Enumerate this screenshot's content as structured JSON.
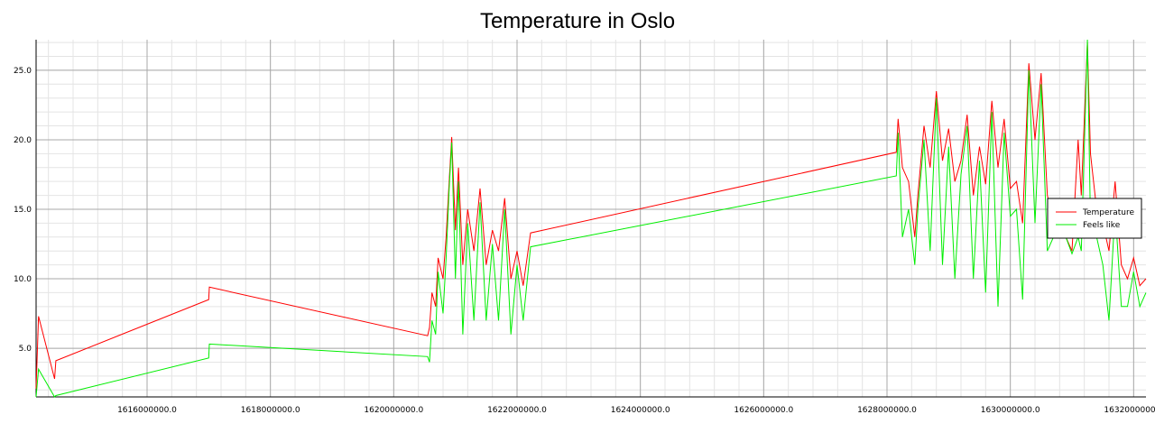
{
  "chart_data": {
    "type": "line",
    "title": "Temperature in Oslo",
    "xlabel": "",
    "ylabel": "",
    "xlim": [
      1614200000,
      1632200000
    ],
    "ylim": [
      1.5,
      27.2
    ],
    "x_ticks": [
      1616000000,
      1618000000,
      1620000000,
      1622000000,
      1624000000,
      1626000000,
      1628000000,
      1630000000,
      1632000000
    ],
    "x_tick_labels": [
      "1616000000.0",
      "1618000000.0",
      "1620000000.0",
      "1622000000.0",
      "1624000000.0",
      "1626000000.0",
      "1628000000.0",
      "1630000000.0",
      "1632000000.0"
    ],
    "y_ticks": [
      5,
      10,
      15,
      20,
      25
    ],
    "y_tick_labels": [
      "5.0",
      "10.0",
      "15.0",
      "20.0",
      "25.0"
    ],
    "grid": true,
    "legend_position": "right",
    "series": [
      {
        "name": "Temperature",
        "color": "#ff0000",
        "points": [
          [
            1614200000,
            2.1
          ],
          [
            1614240000,
            7.3
          ],
          [
            1614500000,
            2.8
          ],
          [
            1614520000,
            4.1
          ],
          [
            1617000000,
            8.5
          ],
          [
            1617010000,
            9.4
          ],
          [
            1620550000,
            5.9
          ],
          [
            1620580000,
            6.5
          ],
          [
            1620620000,
            9.0
          ],
          [
            1620680000,
            8.0
          ],
          [
            1620720000,
            11.5
          ],
          [
            1620800000,
            10.0
          ],
          [
            1620850000,
            13.0
          ],
          [
            1620900000,
            17.0
          ],
          [
            1620940000,
            20.2
          ],
          [
            1621000000,
            13.5
          ],
          [
            1621050000,
            18.0
          ],
          [
            1621120000,
            11.0
          ],
          [
            1621200000,
            15.0
          ],
          [
            1621300000,
            12.0
          ],
          [
            1621400000,
            16.5
          ],
          [
            1621500000,
            11.0
          ],
          [
            1621600000,
            13.5
          ],
          [
            1621700000,
            12.0
          ],
          [
            1621800000,
            15.8
          ],
          [
            1621900000,
            10.0
          ],
          [
            1622000000,
            12.0
          ],
          [
            1622100000,
            9.5
          ],
          [
            1622220000,
            13.3
          ],
          [
            1628150000,
            19.1
          ],
          [
            1628180000,
            21.5
          ],
          [
            1628250000,
            18.0
          ],
          [
            1628350000,
            17.0
          ],
          [
            1628450000,
            13.0
          ],
          [
            1628500000,
            16.0
          ],
          [
            1628600000,
            21.0
          ],
          [
            1628700000,
            18.0
          ],
          [
            1628800000,
            23.5
          ],
          [
            1628900000,
            18.5
          ],
          [
            1629000000,
            20.8
          ],
          [
            1629100000,
            17.0
          ],
          [
            1629200000,
            18.5
          ],
          [
            1629300000,
            21.8
          ],
          [
            1629400000,
            16.0
          ],
          [
            1629500000,
            19.5
          ],
          [
            1629600000,
            16.8
          ],
          [
            1629700000,
            22.8
          ],
          [
            1629800000,
            18.0
          ],
          [
            1629900000,
            21.5
          ],
          [
            1630000000,
            16.5
          ],
          [
            1630100000,
            17.0
          ],
          [
            1630200000,
            14.0
          ],
          [
            1630300000,
            25.5
          ],
          [
            1630400000,
            20.0
          ],
          [
            1630500000,
            24.8
          ],
          [
            1630600000,
            16.0
          ],
          [
            1630700000,
            14.0
          ],
          [
            1630900000,
            13.0
          ],
          [
            1631000000,
            12.0
          ],
          [
            1631100000,
            20.0
          ],
          [
            1631150000,
            16.0
          ],
          [
            1631250000,
            27.0
          ],
          [
            1631300000,
            19.0
          ],
          [
            1631400000,
            15.0
          ],
          [
            1631500000,
            14.0
          ],
          [
            1631600000,
            12.0
          ],
          [
            1631700000,
            17.0
          ],
          [
            1631800000,
            11.0
          ],
          [
            1631900000,
            10.0
          ],
          [
            1632000000,
            11.5
          ],
          [
            1632100000,
            9.5
          ],
          [
            1632200000,
            10.0
          ]
        ]
      },
      {
        "name": "Feels like",
        "color": "#00ee00",
        "points": [
          [
            1614200000,
            1.5
          ],
          [
            1614240000,
            3.5
          ],
          [
            1614500000,
            1.5
          ],
          [
            1614520000,
            1.6
          ],
          [
            1617000000,
            4.3
          ],
          [
            1617010000,
            5.3
          ],
          [
            1620550000,
            4.4
          ],
          [
            1620580000,
            4.0
          ],
          [
            1620620000,
            7.0
          ],
          [
            1620680000,
            6.0
          ],
          [
            1620720000,
            10.5
          ],
          [
            1620800000,
            7.5
          ],
          [
            1620850000,
            11.5
          ],
          [
            1620900000,
            16.5
          ],
          [
            1620940000,
            19.8
          ],
          [
            1621000000,
            10.0
          ],
          [
            1621050000,
            17.0
          ],
          [
            1621120000,
            6.0
          ],
          [
            1621200000,
            14.0
          ],
          [
            1621300000,
            7.0
          ],
          [
            1621400000,
            15.5
          ],
          [
            1621500000,
            7.0
          ],
          [
            1621600000,
            12.5
          ],
          [
            1621700000,
            7.0
          ],
          [
            1621800000,
            15.0
          ],
          [
            1621900000,
            6.0
          ],
          [
            1622000000,
            11.0
          ],
          [
            1622100000,
            7.0
          ],
          [
            1622220000,
            12.3
          ],
          [
            1628150000,
            17.4
          ],
          [
            1628180000,
            20.5
          ],
          [
            1628250000,
            13.0
          ],
          [
            1628350000,
            15.0
          ],
          [
            1628450000,
            11.0
          ],
          [
            1628500000,
            15.0
          ],
          [
            1628600000,
            20.0
          ],
          [
            1628700000,
            12.0
          ],
          [
            1628800000,
            23.0
          ],
          [
            1628900000,
            11.0
          ],
          [
            1629000000,
            19.5
          ],
          [
            1629100000,
            10.0
          ],
          [
            1629200000,
            17.5
          ],
          [
            1629300000,
            21.0
          ],
          [
            1629400000,
            10.0
          ],
          [
            1629500000,
            18.5
          ],
          [
            1629600000,
            9.0
          ],
          [
            1629700000,
            22.0
          ],
          [
            1629800000,
            8.0
          ],
          [
            1629900000,
            20.5
          ],
          [
            1630000000,
            14.5
          ],
          [
            1630100000,
            15.0
          ],
          [
            1630200000,
            8.5
          ],
          [
            1630300000,
            25.0
          ],
          [
            1630400000,
            14.0
          ],
          [
            1630500000,
            24.0
          ],
          [
            1630600000,
            12.0
          ],
          [
            1630700000,
            13.0
          ],
          [
            1630900000,
            13.0
          ],
          [
            1631000000,
            11.8
          ],
          [
            1631100000,
            13.0
          ],
          [
            1631150000,
            12.0
          ],
          [
            1631250000,
            27.2
          ],
          [
            1631300000,
            14.0
          ],
          [
            1631400000,
            13.0
          ],
          [
            1631500000,
            11.0
          ],
          [
            1631600000,
            7.0
          ],
          [
            1631700000,
            15.0
          ],
          [
            1631800000,
            8.0
          ],
          [
            1631900000,
            8.0
          ],
          [
            1632000000,
            10.5
          ],
          [
            1632100000,
            8.0
          ],
          [
            1632200000,
            9.0
          ]
        ]
      }
    ]
  }
}
